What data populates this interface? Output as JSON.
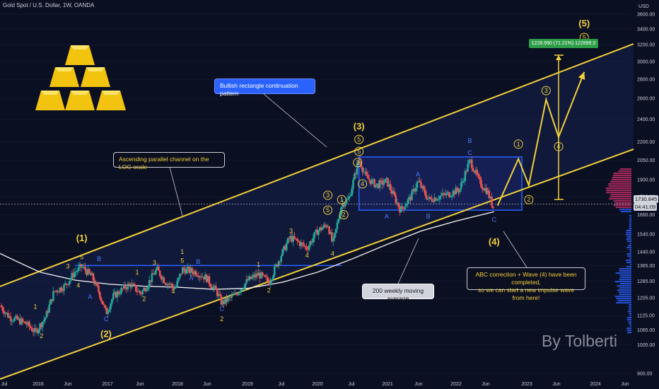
{
  "header": {
    "title": "Gold Spot / U.S. Dollar, 1W, OANDA"
  },
  "watermark": "By Tolberti",
  "logo_icon": "gold-bars-icon",
  "annotations": {
    "rect_pattern": "Bullish rectangle continuation pattern",
    "channel": "Ascending parallel channel on the LOG scale",
    "abc_line1": "ABC correction + Wave (4) have been completed,",
    "abc_line2": "so we can start a new impulse wave from here!",
    "ma": "200 weekly moving average",
    "measure": "1228.990 (71.21%) 122899.0",
    "price": "1730.845",
    "countdown": "04:41:09"
  },
  "colors": {
    "background": "#0b0f22",
    "bull_candle": "#26a69a",
    "bear_candle": "#ef5350",
    "channel": "#f0d03a",
    "rectangle": "#2962ff",
    "ma": "#e8e8e8",
    "labels_yellow": "#f0d03a",
    "labels_blue": "#4d7cff"
  },
  "chart_data": {
    "type": "candlestick",
    "title": "Gold Spot / U.S. Dollar, 1W, OANDA",
    "y_unit": "USD",
    "scale": "log",
    "ylim": [
      900,
      3600
    ],
    "x_ticks": [
      "Jul",
      "2016",
      "Jun",
      "2017",
      "Jun",
      "2018",
      "Jun",
      "2019",
      "Jul",
      "2020",
      "Jul",
      "2021",
      "Jun",
      "2022",
      "Jun",
      "2023",
      "Jun",
      "2024",
      "Jun"
    ],
    "y_ticks": [
      3600,
      3400,
      3200,
      3000,
      2800,
      2600,
      2400,
      2200,
      2050,
      1900,
      1780,
      1660,
      1540,
      1440,
      1365,
      1285,
      1205,
      1125,
      1065,
      1005,
      900
    ],
    "last_price": 1730.845,
    "price_path": [
      [
        2015.42,
        1170
      ],
      [
        2015.55,
        1120
      ],
      [
        2015.68,
        1105
      ],
      [
        2015.8,
        1090
      ],
      [
        2015.93,
        1055
      ],
      [
        2016.08,
        1120
      ],
      [
        2016.2,
        1235
      ],
      [
        2016.35,
        1260
      ],
      [
        2016.5,
        1330
      ],
      [
        2016.6,
        1360
      ],
      [
        2016.75,
        1305
      ],
      [
        2016.85,
        1230
      ],
      [
        2016.95,
        1135
      ],
      [
        2017.05,
        1210
      ],
      [
        2017.2,
        1250
      ],
      [
        2017.3,
        1270
      ],
      [
        2017.45,
        1225
      ],
      [
        2017.55,
        1270
      ],
      [
        2017.68,
        1345
      ],
      [
        2017.8,
        1285
      ],
      [
        2017.95,
        1250
      ],
      [
        2018.05,
        1345
      ],
      [
        2018.25,
        1330
      ],
      [
        2018.4,
        1300
      ],
      [
        2018.55,
        1230
      ],
      [
        2018.62,
        1180
      ],
      [
        2018.8,
        1215
      ],
      [
        2019.0,
        1290
      ],
      [
        2019.15,
        1320
      ],
      [
        2019.3,
        1280
      ],
      [
        2019.45,
        1400
      ],
      [
        2019.6,
        1520
      ],
      [
        2019.7,
        1500
      ],
      [
        2019.85,
        1460
      ],
      [
        2020.0,
        1560
      ],
      [
        2020.15,
        1600
      ],
      [
        2020.22,
        1480
      ],
      [
        2020.35,
        1730
      ],
      [
        2020.45,
        1760
      ],
      [
        2020.6,
        2060
      ],
      [
        2020.7,
        1920
      ],
      [
        2020.85,
        1860
      ],
      [
        2021.0,
        1890
      ],
      [
        2021.2,
        1690
      ],
      [
        2021.35,
        1780
      ],
      [
        2021.45,
        1890
      ],
      [
        2021.6,
        1760
      ],
      [
        2021.75,
        1780
      ],
      [
        2021.9,
        1800
      ],
      [
        2022.05,
        1830
      ],
      [
        2022.2,
        2050
      ],
      [
        2022.35,
        1870
      ],
      [
        2022.45,
        1820
      ],
      [
        2022.55,
        1690
      ]
    ],
    "ma200_path": [
      [
        2015.42,
        1430
      ],
      [
        2015.7,
        1380
      ],
      [
        2016.0,
        1330
      ],
      [
        2016.5,
        1290
      ],
      [
        2017.0,
        1270
      ],
      [
        2017.5,
        1260
      ],
      [
        2018.0,
        1255
      ],
      [
        2018.5,
        1245
      ],
      [
        2019.0,
        1250
      ],
      [
        2019.5,
        1280
      ],
      [
        2020.0,
        1330
      ],
      [
        2020.5,
        1400
      ],
      [
        2021.0,
        1480
      ],
      [
        2021.5,
        1560
      ],
      [
        2022.0,
        1620
      ],
      [
        2022.55,
        1680
      ]
    ],
    "projection_path": [
      [
        2022.6,
        1720
      ],
      [
        2022.9,
        2060
      ],
      [
        2023.05,
        1860
      ],
      [
        2023.3,
        2590
      ],
      [
        2023.48,
        2240
      ],
      [
        2023.85,
        2880
      ]
    ],
    "rectangle": {
      "x": [
        2020.6,
        2022.95
      ],
      "y": [
        1690,
        2075
      ]
    },
    "resistance_level": {
      "x": [
        2016.5,
        2020.35
      ],
      "y": 1365
    },
    "wave_labels": [
      {
        "text": "1",
        "x": 2015.93,
        "y": 1165
      },
      {
        "text": "2",
        "x": 2016.02,
        "y": 1040
      },
      {
        "text": "3",
        "x": 2016.4,
        "y": 1360
      },
      {
        "text": "4",
        "x": 2016.55,
        "y": 1265
      },
      {
        "text": "5",
        "x": 2016.6,
        "y": 1410
      },
      {
        "text": "(1)",
        "x": 2016.6,
        "y": 1520
      },
      {
        "text": "B",
        "x": 2016.85,
        "y": 1400
      },
      {
        "text": "A",
        "x": 2016.72,
        "y": 1210
      },
      {
        "text": "C",
        "x": 2016.95,
        "y": 1110
      },
      {
        "text": "(2)",
        "x": 2016.95,
        "y": 1050
      },
      {
        "text": "1",
        "x": 2017.4,
        "y": 1330
      },
      {
        "text": "2",
        "x": 2017.5,
        "y": 1200
      },
      {
        "text": "3",
        "x": 2017.65,
        "y": 1380
      },
      {
        "text": "4",
        "x": 2017.92,
        "y": 1235
      },
      {
        "text": "5",
        "x": 2018.05,
        "y": 1390
      },
      {
        "text": "1",
        "x": 2018.05,
        "y": 1440
      },
      {
        "text": "A",
        "x": 2018.18,
        "y": 1300
      },
      {
        "text": "B",
        "x": 2018.28,
        "y": 1385
      },
      {
        "text": "C",
        "x": 2018.62,
        "y": 1155
      },
      {
        "text": "2",
        "x": 2018.62,
        "y": 1110
      },
      {
        "text": "1",
        "x": 2019.15,
        "y": 1370
      },
      {
        "text": "2",
        "x": 2019.3,
        "y": 1240
      },
      {
        "text": "3",
        "x": 2019.62,
        "y": 1560
      },
      {
        "text": "4",
        "x": 2019.85,
        "y": 1420
      },
      {
        "text": "5",
        "x": 2020.15,
        "y": 1690
      },
      {
        "text": "4",
        "x": 2020.22,
        "y": 1430
      },
      {
        "text": "3",
        "x": 2020.15,
        "y": 1790
      },
      {
        "text": "1",
        "x": 2020.35,
        "y": 1760
      },
      {
        "text": "2",
        "x": 2020.38,
        "y": 1660
      },
      {
        "text": "3",
        "x": 2020.58,
        "y": 2030
      },
      {
        "text": "4",
        "x": 2020.65,
        "y": 1870
      },
      {
        "text": "5",
        "x": 2020.6,
        "y": 2120
      },
      {
        "text": "5",
        "x": 2020.6,
        "y": 2220
      },
      {
        "text": "(3)",
        "x": 2020.6,
        "y": 2340
      },
      {
        "text": "A",
        "x": 2021.0,
        "y": 1650
      },
      {
        "text": "A",
        "x": 2021.45,
        "y": 1940
      },
      {
        "text": "B",
        "x": 2021.6,
        "y": 1650
      },
      {
        "text": "C",
        "x": 2022.2,
        "y": 2110
      },
      {
        "text": "B",
        "x": 2022.2,
        "y": 2210
      },
      {
        "text": "C",
        "x": 2022.55,
        "y": 1630
      },
      {
        "text": "(4)",
        "x": 2022.55,
        "y": 1500
      },
      {
        "text": "1",
        "x": 2022.9,
        "y": 2180
      },
      {
        "text": "2",
        "x": 2023.05,
        "y": 1760
      },
      {
        "text": "3",
        "x": 2023.3,
        "y": 2680
      },
      {
        "text": "4",
        "x": 2023.48,
        "y": 2160
      },
      {
        "text": "5",
        "x": 2023.85,
        "y": 3290
      },
      {
        "text": "(5)",
        "x": 2023.85,
        "y": 3480
      }
    ]
  }
}
